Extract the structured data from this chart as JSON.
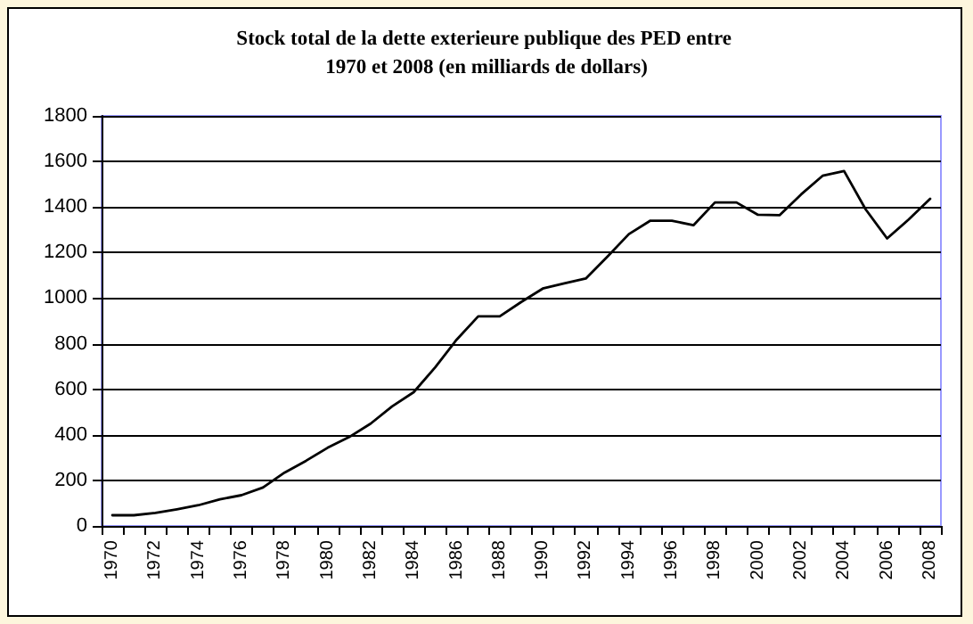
{
  "chart_data": {
    "type": "line",
    "title": "Stock total de la dette exterieure publique des PED entre 1970 et 2008 (en milliards de dollars)",
    "categories": [
      "1970",
      null,
      "1972",
      null,
      "1974",
      null,
      "1976",
      null,
      "1978",
      null,
      "1980",
      null,
      "1982",
      null,
      "1984",
      null,
      "1986",
      null,
      "1988",
      null,
      "1990",
      null,
      "1992",
      null,
      "1994",
      null,
      "1996",
      null,
      "1998",
      null,
      "2000",
      null,
      "2002",
      null,
      "2004",
      null,
      "2006",
      null,
      "2008"
    ],
    "series": [
      {
        "color": "#000000",
        "values": [
          47,
          47,
          57,
          73,
          91,
          117,
          135,
          169,
          234,
          286,
          343,
          390,
          449,
          525,
          587,
          696,
          818,
          920,
          920,
          983,
          1042,
          1065,
          1086,
          1182,
          1281,
          1340,
          1340,
          1320,
          1420,
          1420,
          1366,
          1364,
          1455,
          1537,
          1558,
          1390,
          1262,
          1345,
          1436
        ]
      }
    ],
    "ylim": [
      0,
      1800
    ],
    "yticks": [
      0,
      200,
      400,
      600,
      800,
      1000,
      1200,
      1400,
      1600,
      1800
    ],
    "grid": "y",
    "marker": "none",
    "line_style": "solid"
  }
}
